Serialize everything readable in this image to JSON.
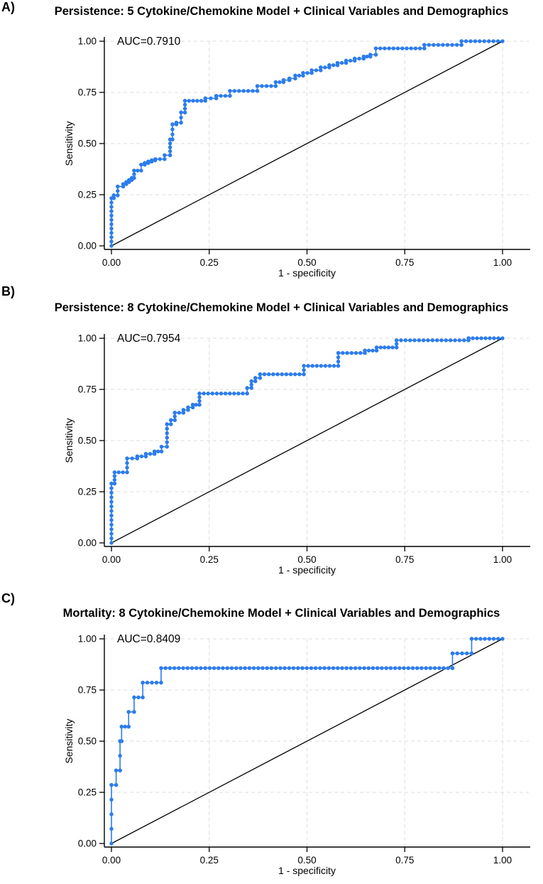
{
  "style": {
    "curve_color": "#2C7CEC",
    "diagonal_color": "#000000",
    "grid_color": "#DEDEDE",
    "axis_color": "#000000",
    "background": "#FFFFFF",
    "text_color": "#000000"
  },
  "panels": [
    {
      "label": "A)",
      "title": "Persistence: 5 Cytokine/Chemokine Model + Clinical Variables and Demographics",
      "auc_label": "AUC=0.7910",
      "xlabel": "1 - specificity",
      "ylabel": "Sensitivity",
      "x_ticks": [
        "0.00",
        "0.25",
        "0.50",
        "0.75",
        "1.00"
      ],
      "y_ticks": [
        "0.00",
        "0.25",
        "0.50",
        "0.75",
        "1.00"
      ]
    },
    {
      "label": "B)",
      "title": "Persistence: 8 Cytokine/Chemokine Model + Clinical Variables and Demographics",
      "auc_label": "AUC=0.7954",
      "xlabel": "1 - specificity",
      "ylabel": "Sensitivity",
      "x_ticks": [
        "0.00",
        "0.25",
        "0.50",
        "0.75",
        "1.00"
      ],
      "y_ticks": [
        "0.00",
        "0.25",
        "0.50",
        "0.75",
        "1.00"
      ]
    },
    {
      "label": "C)",
      "title": "Mortality: 8 Cytokine/Chemokine Model + Clinical Variables and Demographics",
      "auc_label": "AUC=0.8409",
      "xlabel": "1 - specificity",
      "ylabel": "Sensitivity",
      "x_ticks": [
        "0.00",
        "0.25",
        "0.50",
        "0.75",
        "1.00"
      ],
      "y_ticks": [
        "0.00",
        "0.25",
        "0.50",
        "0.75",
        "1.00"
      ]
    }
  ],
  "chart_data": [
    {
      "type": "line",
      "subtype": "roc_step_curve",
      "title": "Persistence: 5 Cytokine/Chemokine Model + Clinical Variables and Demographics",
      "auc": 0.791,
      "xlabel": "1 - specificity",
      "ylabel": "Sensitivity",
      "xlim": [
        0,
        1
      ],
      "ylim": [
        0,
        1
      ],
      "x_tick_values": [
        0,
        0.25,
        0.5,
        0.75,
        1
      ],
      "y_tick_values": [
        0,
        0.25,
        0.5,
        0.75,
        1
      ],
      "grid": "dashed",
      "legend": "none",
      "series": [
        {
          "name": "ROC curve",
          "marker": "filled-circle",
          "step_vertices": [
            [
              0,
              0
            ],
            [
              0,
              0.233
            ],
            [
              0.006,
              0.233
            ],
            [
              0.006,
              0.247
            ],
            [
              0.016,
              0.247
            ],
            [
              0.016,
              0.29
            ],
            [
              0.03,
              0.29
            ],
            [
              0.03,
              0.302
            ],
            [
              0.038,
              0.302
            ],
            [
              0.038,
              0.312
            ],
            [
              0.045,
              0.312
            ],
            [
              0.045,
              0.322
            ],
            [
              0.052,
              0.322
            ],
            [
              0.052,
              0.332
            ],
            [
              0.058,
              0.332
            ],
            [
              0.058,
              0.368
            ],
            [
              0.076,
              0.368
            ],
            [
              0.076,
              0.397
            ],
            [
              0.085,
              0.397
            ],
            [
              0.085,
              0.405
            ],
            [
              0.094,
              0.405
            ],
            [
              0.094,
              0.412
            ],
            [
              0.103,
              0.412
            ],
            [
              0.103,
              0.418
            ],
            [
              0.112,
              0.418
            ],
            [
              0.112,
              0.424
            ],
            [
              0.136,
              0.424
            ],
            [
              0.136,
              0.443
            ],
            [
              0.15,
              0.443
            ],
            [
              0.15,
              0.52
            ],
            [
              0.156,
              0.52
            ],
            [
              0.156,
              0.594
            ],
            [
              0.166,
              0.594
            ],
            [
              0.166,
              0.602
            ],
            [
              0.178,
              0.602
            ],
            [
              0.178,
              0.652
            ],
            [
              0.188,
              0.652
            ],
            [
              0.188,
              0.709
            ],
            [
              0.24,
              0.709
            ],
            [
              0.24,
              0.721
            ],
            [
              0.268,
              0.721
            ],
            [
              0.268,
              0.733
            ],
            [
              0.303,
              0.733
            ],
            [
              0.303,
              0.757
            ],
            [
              0.373,
              0.757
            ],
            [
              0.373,
              0.781
            ],
            [
              0.42,
              0.781
            ],
            [
              0.42,
              0.8
            ],
            [
              0.44,
              0.8
            ],
            [
              0.44,
              0.81
            ],
            [
              0.455,
              0.81
            ],
            [
              0.455,
              0.818
            ],
            [
              0.47,
              0.818
            ],
            [
              0.47,
              0.832
            ],
            [
              0.49,
              0.832
            ],
            [
              0.49,
              0.845
            ],
            [
              0.512,
              0.845
            ],
            [
              0.512,
              0.858
            ],
            [
              0.535,
              0.858
            ],
            [
              0.535,
              0.872
            ],
            [
              0.557,
              0.872
            ],
            [
              0.557,
              0.883
            ],
            [
              0.578,
              0.883
            ],
            [
              0.578,
              0.894
            ],
            [
              0.6,
              0.894
            ],
            [
              0.6,
              0.905
            ],
            [
              0.622,
              0.905
            ],
            [
              0.622,
              0.915
            ],
            [
              0.645,
              0.915
            ],
            [
              0.645,
              0.925
            ],
            [
              0.662,
              0.925
            ],
            [
              0.662,
              0.934
            ],
            [
              0.676,
              0.934
            ],
            [
              0.676,
              0.965
            ],
            [
              0.8,
              0.965
            ],
            [
              0.8,
              0.982
            ],
            [
              0.895,
              0.982
            ],
            [
              0.895,
              1
            ],
            [
              1,
              1
            ]
          ]
        },
        {
          "name": "chance diagonal",
          "points": [
            [
              0,
              0
            ],
            [
              1,
              1
            ]
          ]
        }
      ]
    },
    {
      "type": "line",
      "subtype": "roc_step_curve",
      "title": "Persistence: 8 Cytokine/Chemokine Model + Clinical Variables and Demographics",
      "auc": 0.7954,
      "xlabel": "1 - specificity",
      "ylabel": "Sensitivity",
      "xlim": [
        0,
        1
      ],
      "ylim": [
        0,
        1
      ],
      "x_tick_values": [
        0,
        0.25,
        0.5,
        0.75,
        1
      ],
      "y_tick_values": [
        0,
        0.25,
        0.5,
        0.75,
        1
      ],
      "grid": "dashed",
      "legend": "none",
      "series": [
        {
          "name": "ROC curve",
          "marker": "filled-circle",
          "step_vertices": [
            [
              0,
              0
            ],
            [
              0,
              0.29
            ],
            [
              0.008,
              0.29
            ],
            [
              0.008,
              0.345
            ],
            [
              0.04,
              0.345
            ],
            [
              0.04,
              0.413
            ],
            [
              0.066,
              0.413
            ],
            [
              0.066,
              0.423
            ],
            [
              0.088,
              0.423
            ],
            [
              0.088,
              0.435
            ],
            [
              0.11,
              0.435
            ],
            [
              0.11,
              0.447
            ],
            [
              0.128,
              0.447
            ],
            [
              0.128,
              0.47
            ],
            [
              0.142,
              0.47
            ],
            [
              0.142,
              0.58
            ],
            [
              0.152,
              0.58
            ],
            [
              0.152,
              0.6
            ],
            [
              0.162,
              0.6
            ],
            [
              0.162,
              0.636
            ],
            [
              0.184,
              0.636
            ],
            [
              0.184,
              0.65
            ],
            [
              0.196,
              0.65
            ],
            [
              0.196,
              0.662
            ],
            [
              0.208,
              0.662
            ],
            [
              0.208,
              0.675
            ],
            [
              0.225,
              0.675
            ],
            [
              0.225,
              0.73
            ],
            [
              0.347,
              0.73
            ],
            [
              0.347,
              0.757
            ],
            [
              0.358,
              0.757
            ],
            [
              0.358,
              0.79
            ],
            [
              0.368,
              0.79
            ],
            [
              0.368,
              0.806
            ],
            [
              0.38,
              0.806
            ],
            [
              0.38,
              0.824
            ],
            [
              0.492,
              0.824
            ],
            [
              0.492,
              0.865
            ],
            [
              0.58,
              0.865
            ],
            [
              0.58,
              0.928
            ],
            [
              0.648,
              0.928
            ],
            [
              0.648,
              0.94
            ],
            [
              0.678,
              0.94
            ],
            [
              0.678,
              0.955
            ],
            [
              0.729,
              0.955
            ],
            [
              0.729,
              0.99
            ],
            [
              0.913,
              0.99
            ],
            [
              0.913,
              1
            ],
            [
              1,
              1
            ]
          ]
        },
        {
          "name": "chance diagonal",
          "points": [
            [
              0,
              0
            ],
            [
              1,
              1
            ]
          ]
        }
      ]
    },
    {
      "type": "line",
      "subtype": "roc_step_curve",
      "title": "Mortality: 8 Cytokine/Chemokine Model + Clinical Variables and Demographics",
      "auc": 0.8409,
      "xlabel": "1 - specificity",
      "ylabel": "Sensitivity",
      "xlim": [
        0,
        1
      ],
      "ylim": [
        0,
        1
      ],
      "x_tick_values": [
        0,
        0.25,
        0.5,
        0.75,
        1
      ],
      "y_tick_values": [
        0,
        0.25,
        0.5,
        0.75,
        1
      ],
      "grid": "dashed",
      "legend": "none",
      "series": [
        {
          "name": "ROC curve",
          "marker": "filled-circle",
          "step_vertices": [
            [
              0,
              0
            ],
            [
              0,
              0.286
            ],
            [
              0.012,
              0.286
            ],
            [
              0.012,
              0.357
            ],
            [
              0.022,
              0.357
            ],
            [
              0.022,
              0.5
            ],
            [
              0.026,
              0.5
            ],
            [
              0.026,
              0.571
            ],
            [
              0.044,
              0.571
            ],
            [
              0.044,
              0.643
            ],
            [
              0.058,
              0.643
            ],
            [
              0.058,
              0.714
            ],
            [
              0.08,
              0.714
            ],
            [
              0.08,
              0.786
            ],
            [
              0.127,
              0.786
            ],
            [
              0.127,
              0.857
            ],
            [
              0.872,
              0.857
            ],
            [
              0.872,
              0.929
            ],
            [
              0.921,
              0.929
            ],
            [
              0.921,
              1
            ],
            [
              1,
              1
            ]
          ]
        },
        {
          "name": "chance diagonal",
          "points": [
            [
              0,
              0
            ],
            [
              1,
              1
            ]
          ]
        }
      ]
    }
  ]
}
